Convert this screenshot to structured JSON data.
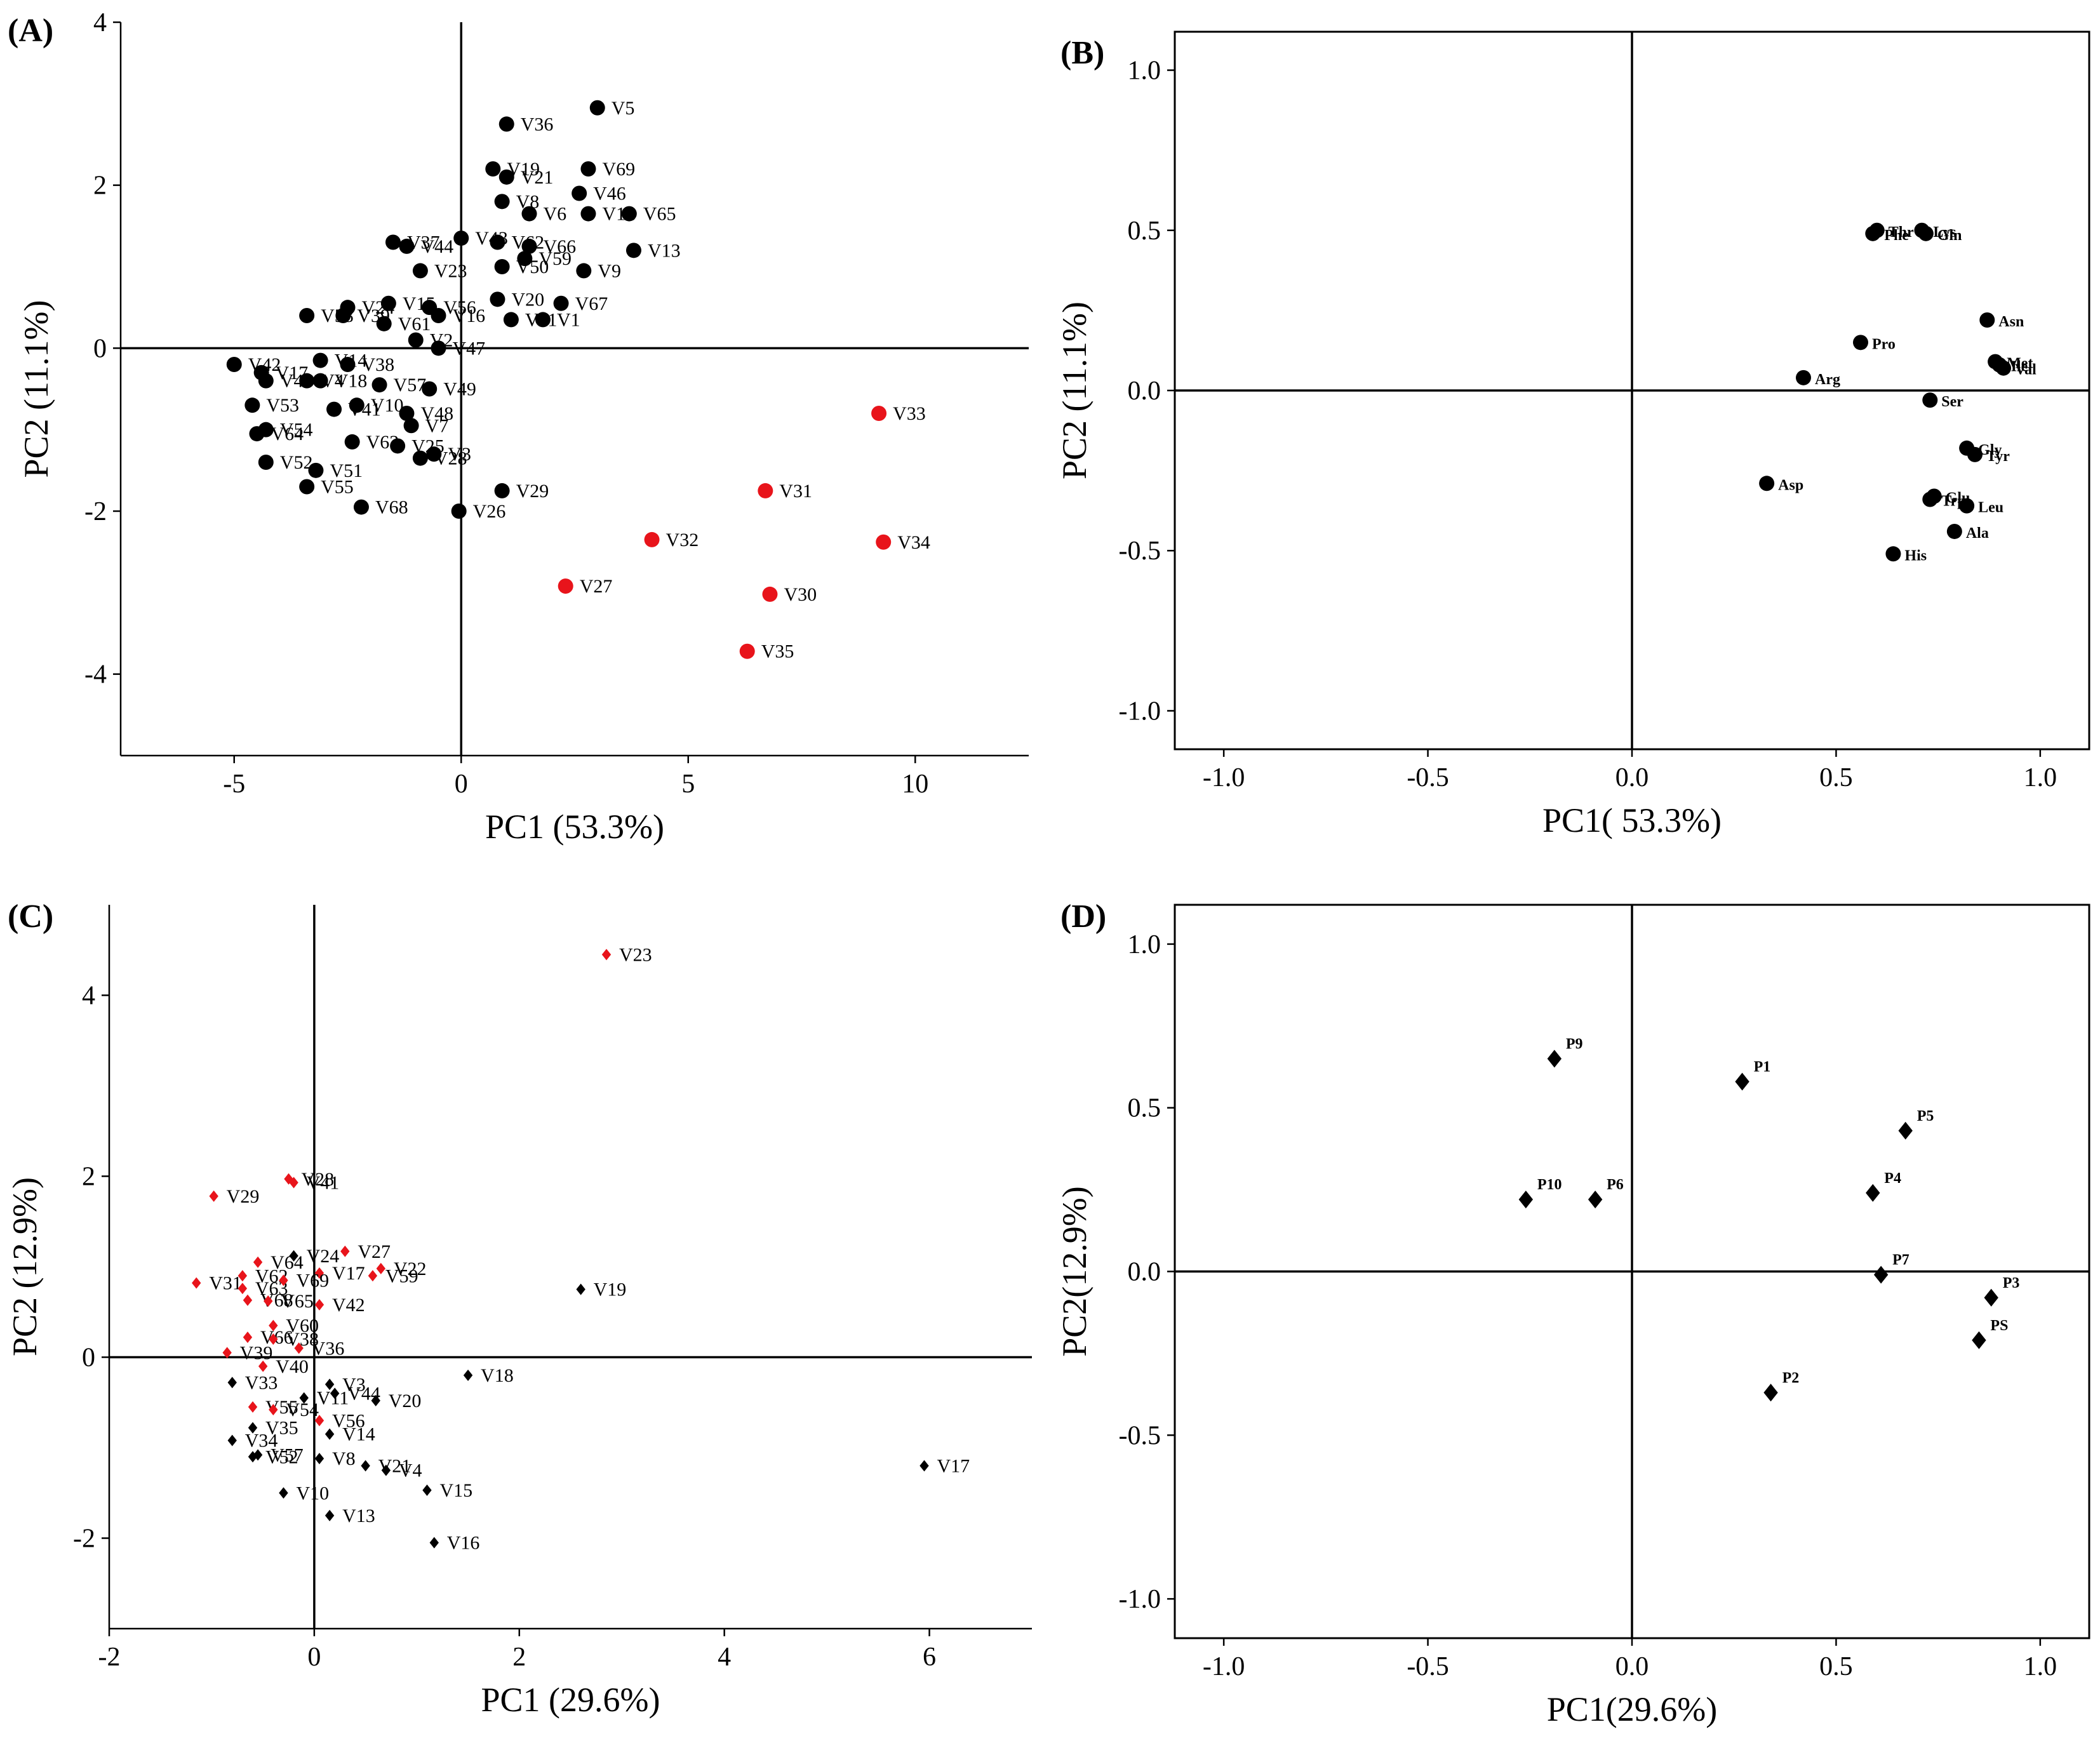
{
  "figure_title": "",
  "chart_data": [
    {
      "id": "A",
      "panel_label": "(A)",
      "type": "scatter",
      "title": "",
      "xlabel": "PC1 (53.3%)",
      "ylabel": "PC2 (11.1%)",
      "xlim": [
        -7.5,
        12.5
      ],
      "ylim": [
        -5,
        4
      ],
      "xticks": [
        {
          "v": -5,
          "label": "-5"
        },
        {
          "v": 0,
          "label": "0"
        },
        {
          "v": 5,
          "label": "5"
        },
        {
          "v": 10,
          "label": "10"
        }
      ],
      "yticks": [
        {
          "v": -4,
          "label": "-4"
        },
        {
          "v": -2,
          "label": "-2"
        },
        {
          "v": 0,
          "label": "0"
        },
        {
          "v": 2,
          "label": "2"
        },
        {
          "v": 4,
          "label": "4"
        }
      ],
      "marker": "circle",
      "colors": {
        "black": "#000000",
        "red": "#e8141b"
      },
      "series": [
        {
          "color": "black",
          "points": [
            {
              "label": "V5",
              "x": 3.0,
              "y": 2.95
            },
            {
              "label": "V36",
              "x": 1.0,
              "y": 2.75
            },
            {
              "label": "V19",
              "x": 0.7,
              "y": 2.2
            },
            {
              "label": "V21",
              "x": 1.0,
              "y": 2.1
            },
            {
              "label": "V69",
              "x": 2.8,
              "y": 2.2
            },
            {
              "label": "V46",
              "x": 2.6,
              "y": 1.9
            },
            {
              "label": "V8",
              "x": 0.9,
              "y": 1.8
            },
            {
              "label": "V6",
              "x": 1.5,
              "y": 1.65
            },
            {
              "label": "V12",
              "x": 2.8,
              "y": 1.65
            },
            {
              "label": "V65",
              "x": 3.7,
              "y": 1.65
            },
            {
              "label": "V37",
              "x": -1.5,
              "y": 1.3
            },
            {
              "label": "V44",
              "x": -1.2,
              "y": 1.25
            },
            {
              "label": "V43",
              "x": 0.0,
              "y": 1.35
            },
            {
              "label": "V62",
              "x": 0.8,
              "y": 1.3
            },
            {
              "label": "V66",
              "x": 1.5,
              "y": 1.25
            },
            {
              "label": "V59",
              "x": 1.4,
              "y": 1.1
            },
            {
              "label": "V13",
              "x": 3.8,
              "y": 1.2
            },
            {
              "label": "V23",
              "x": -0.9,
              "y": 0.95
            },
            {
              "label": "V50",
              "x": 0.9,
              "y": 1.0
            },
            {
              "label": "V9",
              "x": 2.7,
              "y": 0.95
            },
            {
              "label": "V24",
              "x": -2.5,
              "y": 0.5
            },
            {
              "label": "V58",
              "x": -3.4,
              "y": 0.4
            },
            {
              "label": "V15",
              "x": -1.6,
              "y": 0.55
            },
            {
              "label": "V56",
              "x": -0.7,
              "y": 0.5
            },
            {
              "label": "V16",
              "x": -0.5,
              "y": 0.4
            },
            {
              "label": "V20",
              "x": 0.8,
              "y": 0.6
            },
            {
              "label": "V67",
              "x": 2.2,
              "y": 0.55
            },
            {
              "label": "V39",
              "x": -2.6,
              "y": 0.4
            },
            {
              "label": "V61",
              "x": -1.7,
              "y": 0.3
            },
            {
              "label": "V11",
              "x": 1.1,
              "y": 0.35
            },
            {
              "label": "V14",
              "x": -3.1,
              "y": -0.15
            },
            {
              "label": "V2",
              "x": -1.0,
              "y": 0.1
            },
            {
              "label": "V47",
              "x": -0.5,
              "y": 0.0
            },
            {
              "label": "V1",
              "x": 1.8,
              "y": 0.35
            },
            {
              "label": "V42",
              "x": -5.0,
              "y": -0.2
            },
            {
              "label": "V17",
              "x": -4.4,
              "y": -0.3
            },
            {
              "label": "V38",
              "x": -2.5,
              "y": -0.2
            },
            {
              "label": "V45",
              "x": -4.3,
              "y": -0.4
            },
            {
              "label": "V4",
              "x": -3.4,
              "y": -0.4
            },
            {
              "label": "V18",
              "x": -3.1,
              "y": -0.4
            },
            {
              "label": "V57",
              "x": -1.8,
              "y": -0.45
            },
            {
              "label": "V49",
              "x": -0.7,
              "y": -0.5
            },
            {
              "label": "V53",
              "x": -4.6,
              "y": -0.7
            },
            {
              "label": "V10",
              "x": -2.3,
              "y": -0.7
            },
            {
              "label": "V41",
              "x": -2.8,
              "y": -0.75
            },
            {
              "label": "V48",
              "x": -1.2,
              "y": -0.8
            },
            {
              "label": "V7",
              "x": -1.1,
              "y": -0.95
            },
            {
              "label": "V54",
              "x": -4.3,
              "y": -1.0
            },
            {
              "label": "V64",
              "x": -4.5,
              "y": -1.05
            },
            {
              "label": "V63",
              "x": -2.4,
              "y": -1.15
            },
            {
              "label": "V25",
              "x": -1.4,
              "y": -1.2
            },
            {
              "label": "V3",
              "x": -0.6,
              "y": -1.3
            },
            {
              "label": "V52",
              "x": -4.3,
              "y": -1.4
            },
            {
              "label": "V51",
              "x": -3.2,
              "y": -1.5
            },
            {
              "label": "V28",
              "x": -0.9,
              "y": -1.35
            },
            {
              "label": "V55",
              "x": -3.4,
              "y": -1.7
            },
            {
              "label": "V68",
              "x": -2.2,
              "y": -1.95
            },
            {
              "label": "V26",
              "x": -0.05,
              "y": -2.0
            },
            {
              "label": "V29",
              "x": 0.9,
              "y": -1.75
            }
          ]
        },
        {
          "color": "red",
          "points": [
            {
              "label": "V33",
              "x": 9.2,
              "y": -0.8
            },
            {
              "label": "V31",
              "x": 6.7,
              "y": -1.75
            },
            {
              "label": "V32",
              "x": 4.2,
              "y": -2.35
            },
            {
              "label": "V34",
              "x": 9.3,
              "y": -2.38
            },
            {
              "label": "V27",
              "x": 2.3,
              "y": -2.92
            },
            {
              "label": "V30",
              "x": 6.8,
              "y": -3.02
            },
            {
              "label": "V35",
              "x": 6.3,
              "y": -3.72
            }
          ]
        }
      ]
    },
    {
      "id": "B",
      "panel_label": "(B)",
      "type": "scatter",
      "title": "",
      "xlabel": "PC1( 53.3%)",
      "ylabel": "PC2 (11.1%)",
      "xlim": [
        -1.12,
        1.12
      ],
      "ylim": [
        -1.12,
        1.12
      ],
      "xticks": [
        {
          "v": -1.0,
          "label": "-1.0"
        },
        {
          "v": -0.5,
          "label": "-0.5"
        },
        {
          "v": 0.0,
          "label": "0.0"
        },
        {
          "v": 0.5,
          "label": "0.5"
        },
        {
          "v": 1.0,
          "label": "1.0"
        }
      ],
      "yticks": [
        {
          "v": -1.0,
          "label": "-1.0"
        },
        {
          "v": -0.5,
          "label": "-0.5"
        },
        {
          "v": 0.0,
          "label": "0.0"
        },
        {
          "v": 0.5,
          "label": "0.5"
        },
        {
          "v": 1.0,
          "label": "1.0"
        }
      ],
      "marker": "circle",
      "colors": {
        "black": "#000000"
      },
      "series": [
        {
          "color": "black",
          "points": [
            {
              "label": "Thr",
              "x": 0.6,
              "y": 0.5
            },
            {
              "label": "Phe",
              "x": 0.59,
              "y": 0.49
            },
            {
              "label": "Lys",
              "x": 0.71,
              "y": 0.5
            },
            {
              "label": "Gln",
              "x": 0.72,
              "y": 0.49
            },
            {
              "label": "Asn",
              "x": 0.87,
              "y": 0.22
            },
            {
              "label": "Pro",
              "x": 0.56,
              "y": 0.15
            },
            {
              "label": "Met",
              "x": 0.89,
              "y": 0.09
            },
            {
              "label": "Ile",
              "x": 0.9,
              "y": 0.08
            },
            {
              "label": "Val",
              "x": 0.91,
              "y": 0.07
            },
            {
              "label": "Arg",
              "x": 0.42,
              "y": 0.04
            },
            {
              "label": "Ser",
              "x": 0.73,
              "y": -0.03
            },
            {
              "label": "Gly",
              "x": 0.82,
              "y": -0.18
            },
            {
              "label": "Tyr",
              "x": 0.84,
              "y": -0.2
            },
            {
              "label": "Asp",
              "x": 0.33,
              "y": -0.29
            },
            {
              "label": "Trp",
              "x": 0.73,
              "y": -0.34
            },
            {
              "label": "Glu",
              "x": 0.74,
              "y": -0.33
            },
            {
              "label": "Leu",
              "x": 0.82,
              "y": -0.36
            },
            {
              "label": "His",
              "x": 0.64,
              "y": -0.51
            },
            {
              "label": "Ala",
              "x": 0.79,
              "y": -0.44
            }
          ]
        }
      ]
    },
    {
      "id": "C",
      "panel_label": "(C)",
      "type": "scatter",
      "title": "",
      "xlabel": "PC1 (29.6%)",
      "ylabel": "PC2 (12.9%)",
      "xlim": [
        -2,
        7
      ],
      "ylim": [
        -3,
        5
      ],
      "xticks": [
        {
          "v": -2,
          "label": "-2"
        },
        {
          "v": 0,
          "label": "0"
        },
        {
          "v": 2,
          "label": "2"
        },
        {
          "v": 4,
          "label": "4"
        },
        {
          "v": 6,
          "label": "6"
        }
      ],
      "yticks": [
        {
          "v": -2,
          "label": "-2"
        },
        {
          "v": 0,
          "label": "0"
        },
        {
          "v": 2,
          "label": "2"
        },
        {
          "v": 4,
          "label": "4"
        }
      ],
      "marker": "diamond",
      "colors": {
        "black": "#000000",
        "red": "#e8141b"
      },
      "series": [
        {
          "color": "red",
          "points": [
            {
              "label": "V23",
              "x": 2.85,
              "y": 4.45
            },
            {
              "label": "V28",
              "x": -0.25,
              "y": 1.97
            },
            {
              "label": "V41",
              "x": -0.2,
              "y": 1.93
            },
            {
              "label": "V29",
              "x": -0.98,
              "y": 1.78
            },
            {
              "label": "V27",
              "x": 0.3,
              "y": 1.17
            },
            {
              "label": "V22",
              "x": 0.65,
              "y": 0.98
            },
            {
              "label": "V17",
              "x": 0.05,
              "y": 0.93
            },
            {
              "label": "V59",
              "x": 0.57,
              "y": 0.9
            },
            {
              "label": "V64",
              "x": -0.55,
              "y": 1.05
            },
            {
              "label": "V62",
              "x": -0.7,
              "y": 0.9
            },
            {
              "label": "V31",
              "x": -1.15,
              "y": 0.82
            },
            {
              "label": "V63",
              "x": -0.7,
              "y": 0.76
            },
            {
              "label": "V69",
              "x": -0.3,
              "y": 0.85
            },
            {
              "label": "V42",
              "x": 0.05,
              "y": 0.58
            },
            {
              "label": "V68",
              "x": -0.65,
              "y": 0.63
            },
            {
              "label": "V65",
              "x": -0.45,
              "y": 0.62
            },
            {
              "label": "V60",
              "x": -0.4,
              "y": 0.35
            },
            {
              "label": "V66",
              "x": -0.65,
              "y": 0.22
            },
            {
              "label": "V38",
              "x": -0.4,
              "y": 0.2
            },
            {
              "label": "V36",
              "x": -0.15,
              "y": 0.1
            },
            {
              "label": "V39",
              "x": -0.85,
              "y": 0.05
            },
            {
              "label": "V40",
              "x": -0.5,
              "y": -0.1
            },
            {
              "label": "V55",
              "x": -0.6,
              "y": -0.55
            },
            {
              "label": "V54",
              "x": -0.4,
              "y": -0.58
            },
            {
              "label": "V56",
              "x": 0.05,
              "y": -0.7
            }
          ]
        },
        {
          "color": "black",
          "points": [
            {
              "label": "V19",
              "x": 2.6,
              "y": 0.75
            },
            {
              "label": "V18",
              "x": 1.5,
              "y": -0.2
            },
            {
              "label": "V17",
              "x": 5.95,
              "y": -1.2
            },
            {
              "label": "V20",
              "x": 0.6,
              "y": -0.48
            },
            {
              "label": "V24",
              "x": -0.2,
              "y": 1.12
            },
            {
              "label": "V44",
              "x": 0.2,
              "y": -0.4
            },
            {
              "label": "V3",
              "x": 0.15,
              "y": -0.3
            },
            {
              "label": "V11",
              "x": -0.1,
              "y": -0.45
            },
            {
              "label": "V14",
              "x": 0.15,
              "y": -0.85
            },
            {
              "label": "V33",
              "x": -0.8,
              "y": -0.28
            },
            {
              "label": "V35",
              "x": -0.6,
              "y": -0.78
            },
            {
              "label": "V34",
              "x": -0.8,
              "y": -0.92
            },
            {
              "label": "V57",
              "x": -0.55,
              "y": -1.08
            },
            {
              "label": "V52",
              "x": -0.6,
              "y": -1.1
            },
            {
              "label": "V8",
              "x": 0.05,
              "y": -1.12
            },
            {
              "label": "V21",
              "x": 0.5,
              "y": -1.2
            },
            {
              "label": "V4",
              "x": 0.7,
              "y": -1.25
            },
            {
              "label": "V15",
              "x": 1.1,
              "y": -1.47
            },
            {
              "label": "V10",
              "x": -0.3,
              "y": -1.5
            },
            {
              "label": "V13",
              "x": 0.15,
              "y": -1.75
            },
            {
              "label": "V16",
              "x": 1.17,
              "y": -2.05
            }
          ]
        }
      ]
    },
    {
      "id": "D",
      "panel_label": "(D)",
      "type": "scatter",
      "title": "",
      "xlabel": "PC1(29.6%)",
      "ylabel": "PC2(12.9%)",
      "xlim": [
        -1.12,
        1.12
      ],
      "ylim": [
        -1.12,
        1.12
      ],
      "xticks": [
        {
          "v": -1.0,
          "label": "-1.0"
        },
        {
          "v": -0.5,
          "label": "-0.5"
        },
        {
          "v": 0.0,
          "label": "0.0"
        },
        {
          "v": 0.5,
          "label": "0.5"
        },
        {
          "v": 1.0,
          "label": "1.0"
        }
      ],
      "yticks": [
        {
          "v": -1.0,
          "label": "-1.0"
        },
        {
          "v": -0.5,
          "label": "-0.5"
        },
        {
          "v": 0.0,
          "label": "0.0"
        },
        {
          "v": 0.5,
          "label": "0.5"
        },
        {
          "v": 1.0,
          "label": "1.0"
        }
      ],
      "marker": "diamond",
      "colors": {
        "black": "#000000"
      },
      "series": [
        {
          "color": "black",
          "points": [
            {
              "label": "P9",
              "x": -0.19,
              "y": 0.65
            },
            {
              "label": "P1",
              "x": 0.27,
              "y": 0.58
            },
            {
              "label": "P5",
              "x": 0.67,
              "y": 0.43
            },
            {
              "label": "P10",
              "x": -0.26,
              "y": 0.22
            },
            {
              "label": "P6",
              "x": -0.09,
              "y": 0.22
            },
            {
              "label": "P4",
              "x": 0.59,
              "y": 0.24
            },
            {
              "label": "P7",
              "x": 0.61,
              "y": -0.01
            },
            {
              "label": "P3",
              "x": 0.88,
              "y": -0.08
            },
            {
              "label": "PS",
              "x": 0.85,
              "y": -0.21
            },
            {
              "label": "P2",
              "x": 0.34,
              "y": -0.37
            }
          ]
        }
      ]
    }
  ]
}
